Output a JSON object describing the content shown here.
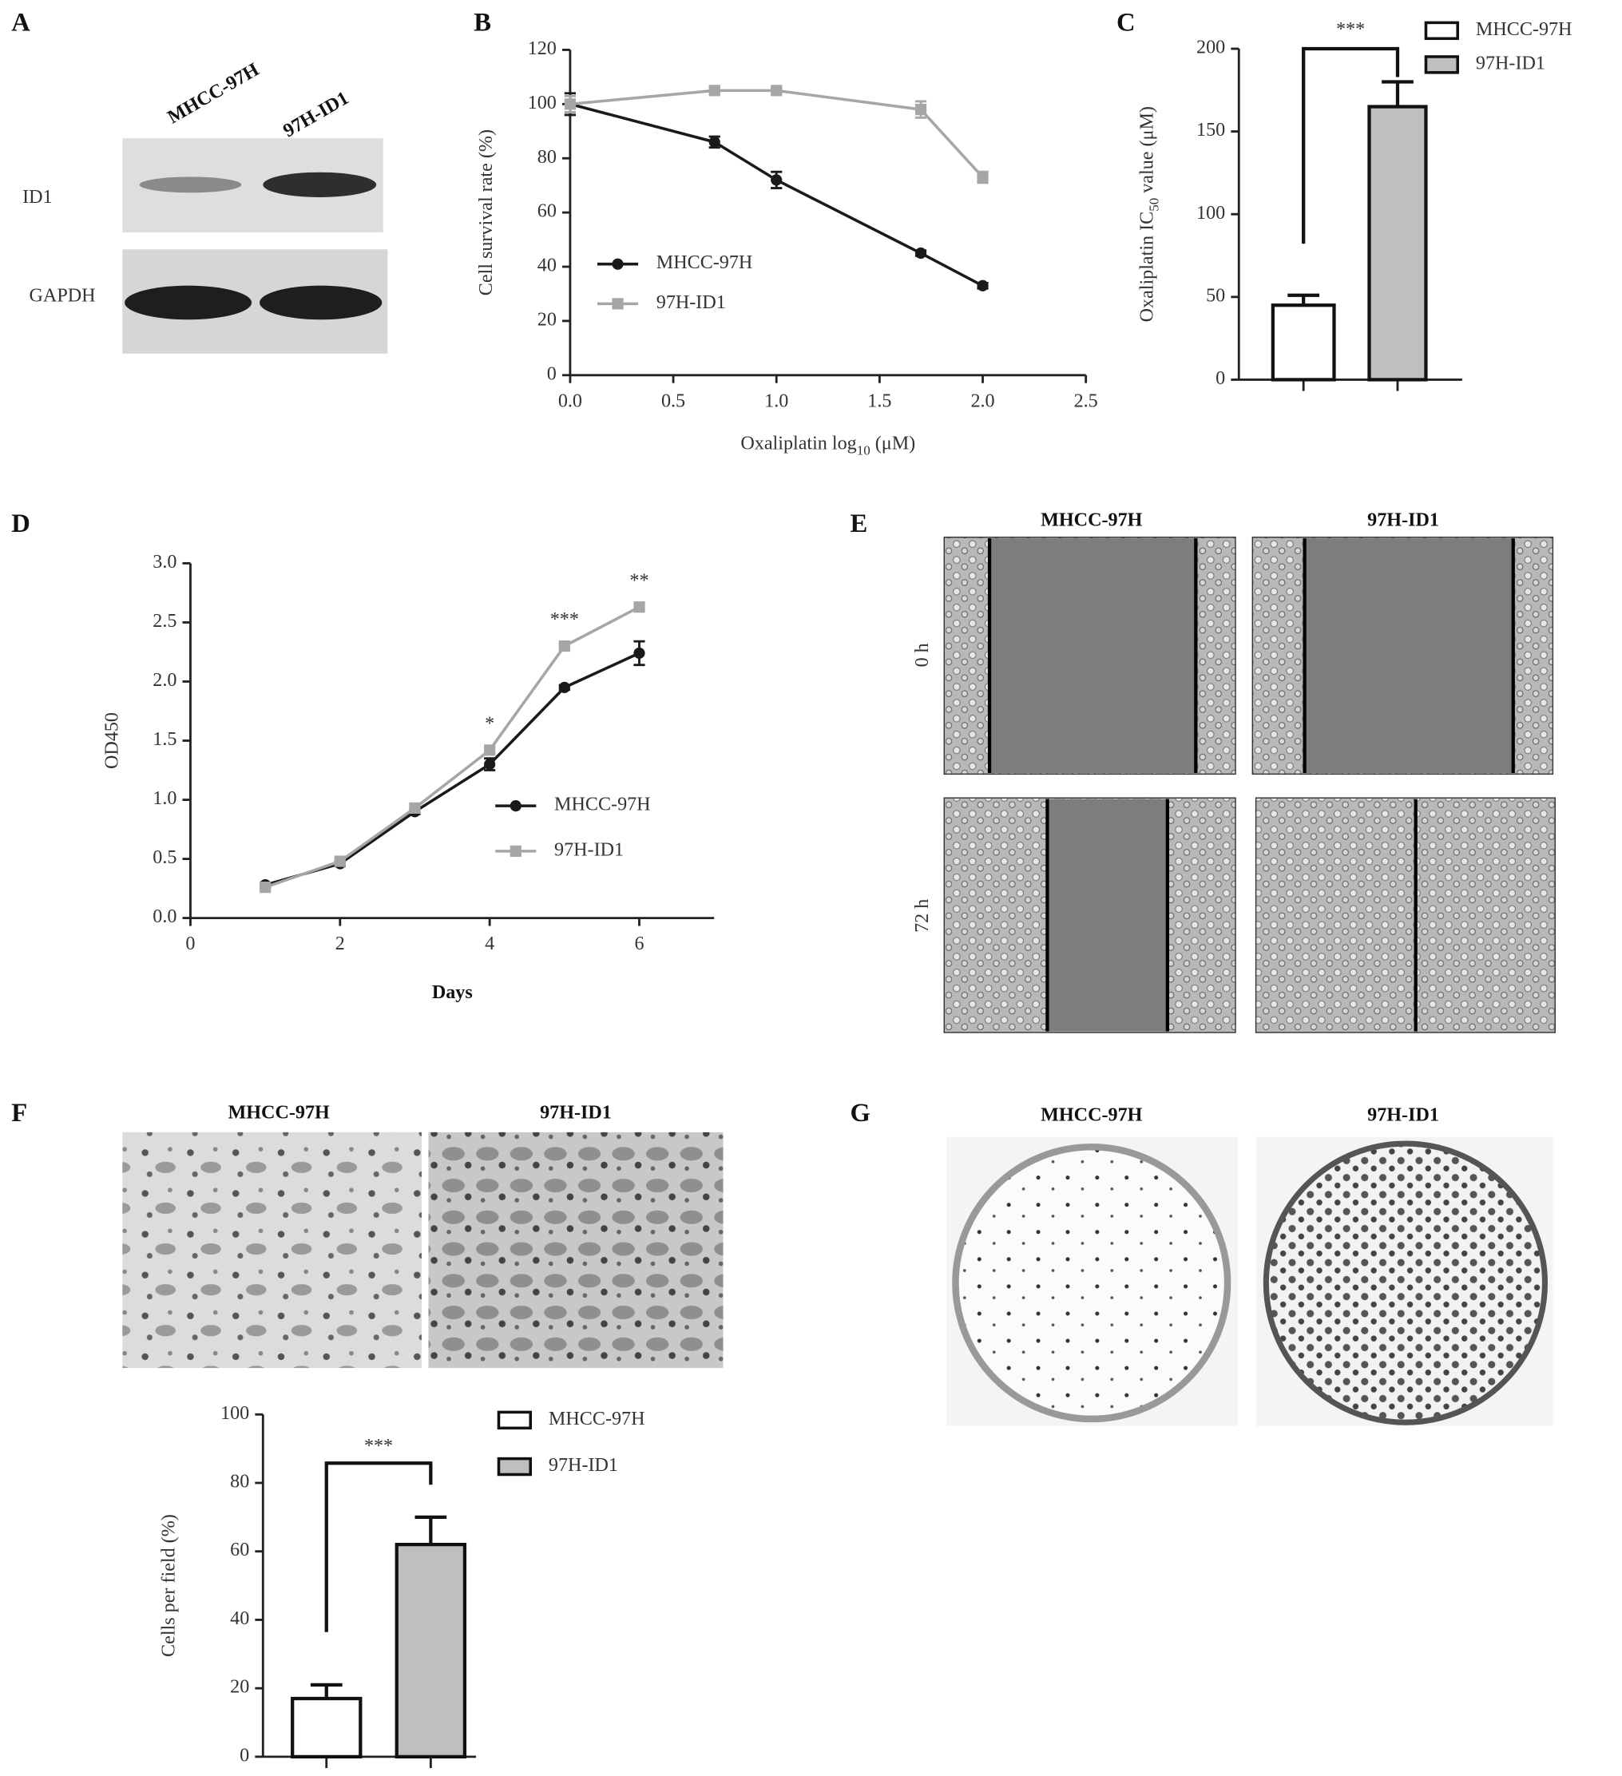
{
  "figure": {
    "A": {
      "letter": "A",
      "columns": [
        "MHCC-97H",
        "97H-ID1"
      ],
      "rows": [
        "ID1",
        "GAPDH"
      ]
    },
    "E": {
      "letter": "E",
      "columns": [
        "MHCC-97H",
        "97H-ID1"
      ],
      "rows": [
        "0 h",
        "72 h"
      ]
    },
    "F": {
      "letter": "F",
      "columns": [
        "MHCC-97H",
        "97H-ID1"
      ]
    },
    "G": {
      "letter": "G",
      "columns": [
        "MHCC-97H",
        "97H-ID1"
      ]
    }
  },
  "chart_data": [
    {
      "type": "line",
      "panel_label": "B",
      "x_label": [
        "Oxaliplatin log",
        "10",
        " (μM)"
      ],
      "y_label": "Cell survival rate (%)",
      "x": [
        0,
        0.7,
        1,
        1.7,
        2
      ],
      "series": [
        {
          "name": "MHCC-97H",
          "color": "#1a1a1a",
          "marker": "circle",
          "values": [
            100,
            86,
            72,
            45,
            33
          ],
          "errors": [
            4,
            2,
            3,
            1,
            1
          ]
        },
        {
          "name": "97H-ID1",
          "color": "#a6a6a6",
          "marker": "square",
          "values": [
            100,
            105,
            105,
            98,
            73
          ],
          "errors": [
            3,
            1,
            1,
            3,
            2
          ]
        }
      ],
      "xlim": [
        0,
        2.5
      ],
      "xticks": [
        {
          "value": 0,
          "label": "0.0"
        },
        {
          "value": 0.5,
          "label": "0.5"
        },
        {
          "value": 1,
          "label": "1.0"
        },
        {
          "value": 1.5,
          "label": "1.5"
        },
        {
          "value": 2,
          "label": "2.0"
        },
        {
          "value": 2.5,
          "label": "2.5"
        }
      ],
      "ylim": [
        0,
        120
      ],
      "yticks": [
        0,
        20,
        40,
        60,
        80,
        100,
        120
      ]
    },
    {
      "type": "bar",
      "panel_label": "C",
      "y_label": [
        "Oxaliplatin IC",
        "50",
        " value (μM)"
      ],
      "categories": [
        null
      ],
      "series": [
        {
          "name": "MHCC-97H",
          "color": "#ffffff",
          "values": [
            45
          ],
          "errors": [
            6
          ]
        },
        {
          "name": "97H-ID1",
          "color": "#bfbfbf",
          "values": [
            165
          ],
          "errors": [
            15
          ]
        }
      ],
      "significance": "***",
      "ylim": [
        0,
        200
      ],
      "yticks": [
        0,
        50,
        100,
        150,
        200
      ]
    },
    {
      "type": "line",
      "panel_label": "D",
      "x_label": "Days",
      "y_label": "OD450",
      "x": [
        1,
        2,
        3,
        4,
        5,
        6
      ],
      "series": [
        {
          "name": "MHCC-97H",
          "color": "#1a1a1a",
          "marker": "circle",
          "values": [
            0.28,
            0.46,
            0.9,
            1.3,
            1.95,
            2.24
          ],
          "errors": [
            0.02,
            0.02,
            0.02,
            0.05,
            0.02,
            0.1
          ]
        },
        {
          "name": "97H-ID1",
          "color": "#a6a6a6",
          "marker": "square",
          "values": [
            0.26,
            0.48,
            0.93,
            1.42,
            2.3,
            2.63
          ],
          "errors": [
            0.02,
            0.02,
            0.02,
            0.02,
            0.02,
            0.02
          ]
        }
      ],
      "annotations": [
        {
          "text": "*",
          "x": 4
        },
        {
          "text": "***",
          "x": 5
        },
        {
          "text": "**",
          "x": 6
        }
      ],
      "xlim": [
        0,
        7
      ],
      "xticks": [
        0,
        2,
        4,
        6
      ],
      "ylim": [
        0,
        3
      ],
      "yticks": [
        {
          "value": 0,
          "label": "0.0"
        },
        {
          "value": 0.5,
          "label": "0.5"
        },
        {
          "value": 1,
          "label": "1.0"
        },
        {
          "value": 1.5,
          "label": "1.5"
        },
        {
          "value": 2,
          "label": "2.0"
        },
        {
          "value": 2.5,
          "label": "2.5"
        },
        {
          "value": 3,
          "label": "3.0"
        }
      ]
    },
    {
      "type": "bar",
      "y_label": "Cells per field (%)",
      "categories": [
        null
      ],
      "series": [
        {
          "name": "MHCC-97H",
          "color": "#ffffff",
          "values": [
            17
          ],
          "errors": [
            4
          ]
        },
        {
          "name": "97H-ID1",
          "color": "#bfbfbf",
          "values": [
            62
          ],
          "errors": [
            8
          ]
        }
      ],
      "significance": "***",
      "ylim": [
        0,
        100
      ],
      "yticks": [
        0,
        20,
        40,
        60,
        80,
        100
      ]
    }
  ]
}
